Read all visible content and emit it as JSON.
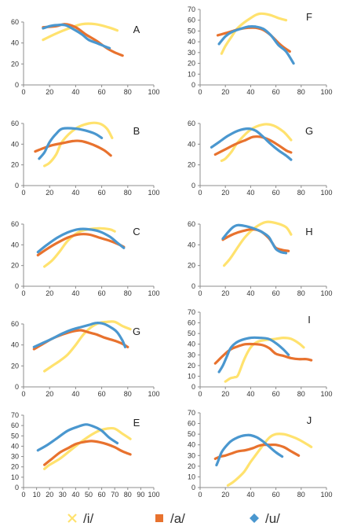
{
  "colors": {
    "i": "#FFE26E",
    "a": "#E8722E",
    "u": "#4A97CF",
    "axis": "#8C8C8C"
  },
  "legend": [
    {
      "key": "i",
      "label": "/i/",
      "marker": "x"
    },
    {
      "key": "a",
      "label": "/a/",
      "marker": "square"
    },
    {
      "key": "u",
      "label": "/u/",
      "marker": "diamond"
    }
  ],
  "chart_data": [
    {
      "type": "line",
      "label": "A",
      "xlim": [
        0,
        100
      ],
      "ylim": [
        0,
        60
      ],
      "xticks": [
        0,
        20,
        40,
        60,
        80,
        100
      ],
      "yticks": [
        0,
        20,
        40,
        60
      ],
      "series": [
        {
          "name": "/i/",
          "key": "i",
          "x": [
            15,
            25,
            35,
            45,
            55,
            65,
            72
          ],
          "y": [
            43,
            49,
            54,
            58,
            58,
            55,
            52
          ]
        },
        {
          "name": "/a/",
          "key": "a",
          "x": [
            15,
            25,
            32,
            40,
            48,
            56,
            64,
            70,
            76
          ],
          "y": [
            55,
            56,
            58,
            55,
            48,
            42,
            35,
            31,
            28
          ]
        },
        {
          "name": "/u/",
          "key": "u",
          "x": [
            15,
            20,
            25,
            32,
            40,
            45,
            50,
            56,
            62,
            66
          ],
          "y": [
            54,
            56,
            57,
            57,
            52,
            48,
            43,
            40,
            37,
            35
          ]
        }
      ]
    },
    {
      "type": "line",
      "label": "F",
      "xlim": [
        0,
        100
      ],
      "ylim": [
        0,
        70
      ],
      "xticks": [
        0,
        20,
        40,
        60,
        80,
        100
      ],
      "yticks": [
        0,
        10,
        20,
        30,
        40,
        50,
        60,
        70
      ],
      "series": [
        {
          "name": "/i/",
          "key": "i",
          "x": [
            17,
            20,
            25,
            30,
            40,
            47,
            55,
            62,
            68
          ],
          "y": [
            29,
            36,
            45,
            53,
            62,
            66,
            65,
            62,
            60
          ]
        },
        {
          "name": "/a/",
          "key": "a",
          "x": [
            14,
            20,
            26,
            32,
            38,
            44,
            50,
            56,
            62,
            66,
            71
          ],
          "y": [
            46,
            48,
            50,
            52,
            53,
            53,
            51,
            46,
            39,
            35,
            31
          ]
        },
        {
          "name": "/u/",
          "key": "u",
          "x": [
            15,
            20,
            25,
            32,
            38,
            44,
            50,
            56,
            62,
            68,
            74
          ],
          "y": [
            38,
            45,
            49,
            52,
            54,
            54,
            52,
            46,
            37,
            31,
            20
          ]
        }
      ]
    },
    {
      "type": "line",
      "label": "B",
      "xlim": [
        0,
        100
      ],
      "ylim": [
        0,
        60
      ],
      "xticks": [
        0,
        20,
        40,
        60,
        80,
        100
      ],
      "yticks": [
        0,
        20,
        40,
        60
      ],
      "series": [
        {
          "name": "/i/",
          "key": "i",
          "x": [
            16,
            20,
            25,
            30,
            40,
            50,
            58,
            64,
            68
          ],
          "y": [
            19,
            22,
            30,
            43,
            55,
            60,
            60,
            55,
            46
          ]
        },
        {
          "name": "/a/",
          "key": "a",
          "x": [
            9,
            15,
            22,
            30,
            38,
            44,
            50,
            56,
            62,
            67
          ],
          "y": [
            33,
            36,
            39,
            41,
            43,
            43,
            41,
            38,
            34,
            29
          ]
        },
        {
          "name": "/u/",
          "key": "u",
          "x": [
            12,
            16,
            20,
            25,
            30,
            40,
            48,
            55,
            60
          ],
          "y": [
            26,
            32,
            42,
            50,
            55,
            55,
            53,
            50,
            46
          ]
        }
      ]
    },
    {
      "type": "line",
      "label": "G",
      "xlim": [
        0,
        100
      ],
      "ylim": [
        0,
        60
      ],
      "xticks": [
        0,
        20,
        40,
        60,
        80,
        100
      ],
      "yticks": [
        0,
        20,
        40,
        60
      ],
      "series": [
        {
          "name": "/i/",
          "key": "i",
          "x": [
            17,
            20,
            25,
            30,
            40,
            50,
            58,
            66,
            72
          ],
          "y": [
            24,
            26,
            33,
            42,
            54,
            59,
            58,
            52,
            44
          ]
        },
        {
          "name": "/a/",
          "key": "a",
          "x": [
            12,
            20,
            28,
            36,
            42,
            48,
            55,
            62,
            68,
            72
          ],
          "y": [
            30,
            35,
            40,
            44,
            47,
            47,
            44,
            39,
            34,
            32
          ]
        },
        {
          "name": "/u/",
          "key": "u",
          "x": [
            9,
            15,
            22,
            30,
            38,
            44,
            50,
            56,
            62,
            68,
            72
          ],
          "y": [
            37,
            42,
            48,
            53,
            55,
            53,
            47,
            40,
            34,
            29,
            25
          ]
        }
      ]
    },
    {
      "type": "line",
      "label": "C",
      "xlim": [
        0,
        100
      ],
      "ylim": [
        0,
        60
      ],
      "xticks": [
        0,
        20,
        40,
        60,
        80,
        100
      ],
      "yticks": [
        0,
        20,
        40,
        60
      ],
      "series": [
        {
          "name": "/i/",
          "key": "i",
          "x": [
            16,
            22,
            28,
            34,
            42,
            50,
            58,
            66,
            70
          ],
          "y": [
            19,
            25,
            34,
            44,
            52,
            55,
            56,
            55,
            53
          ]
        },
        {
          "name": "/a/",
          "key": "a",
          "x": [
            11,
            18,
            26,
            34,
            42,
            50,
            58,
            66,
            72,
            77
          ],
          "y": [
            30,
            36,
            42,
            47,
            50,
            50,
            47,
            44,
            41,
            38
          ]
        },
        {
          "name": "/u/",
          "key": "u",
          "x": [
            11,
            18,
            26,
            34,
            42,
            50,
            58,
            66,
            72,
            77
          ],
          "y": [
            33,
            40,
            47,
            52,
            55,
            55,
            53,
            48,
            42,
            37
          ]
        }
      ]
    },
    {
      "type": "line",
      "label": "H",
      "xlim": [
        0,
        100
      ],
      "ylim": [
        0,
        60
      ],
      "xticks": [
        0,
        20,
        40,
        60,
        80,
        100
      ],
      "yticks": [
        0,
        20,
        40,
        60
      ],
      "series": [
        {
          "name": "/i/",
          "key": "i",
          "x": [
            19,
            24,
            30,
            36,
            44,
            52,
            60,
            68,
            72
          ],
          "y": [
            20,
            27,
            38,
            48,
            57,
            62,
            61,
            57,
            50
          ]
        },
        {
          "name": "/a/",
          "key": "a",
          "x": [
            18,
            24,
            30,
            36,
            42,
            48,
            54,
            57,
            60,
            65,
            70
          ],
          "y": [
            45,
            49,
            52,
            54,
            55,
            53,
            47,
            42,
            37,
            35,
            34
          ]
        },
        {
          "name": "/u/",
          "key": "u",
          "x": [
            18,
            22,
            26,
            30,
            36,
            42,
            48,
            54,
            57,
            60,
            64,
            68
          ],
          "y": [
            46,
            52,
            57,
            59,
            58,
            56,
            53,
            48,
            42,
            36,
            33,
            32
          ]
        }
      ]
    },
    {
      "type": "line",
      "label": "G",
      "xlim": [
        0,
        100
      ],
      "ylim": [
        0,
        60
      ],
      "xticks": [
        0,
        20,
        40,
        60,
        80,
        100
      ],
      "yticks": [
        0,
        20,
        40,
        60
      ],
      "series": [
        {
          "name": "/i/",
          "key": "i",
          "x": [
            16,
            22,
            28,
            34,
            40,
            46,
            52,
            58,
            64,
            70,
            76,
            82
          ],
          "y": [
            15,
            20,
            25,
            31,
            40,
            50,
            57,
            61,
            62,
            62,
            58,
            55
          ]
        },
        {
          "name": "/a/",
          "key": "a",
          "x": [
            8,
            15,
            22,
            30,
            38,
            44,
            50,
            56,
            62,
            70,
            76,
            80
          ],
          "y": [
            36,
            41,
            46,
            50,
            53,
            54,
            52,
            50,
            47,
            44,
            41,
            38
          ]
        },
        {
          "name": "/u/",
          "key": "u",
          "x": [
            8,
            15,
            22,
            30,
            38,
            44,
            50,
            56,
            62,
            68,
            72,
            76,
            78
          ],
          "y": [
            38,
            42,
            46,
            51,
            55,
            57,
            59,
            61,
            60,
            56,
            52,
            44,
            38
          ]
        }
      ]
    },
    {
      "type": "line",
      "label": "I",
      "xlim": [
        0,
        100
      ],
      "ylim": [
        0,
        70
      ],
      "xticks": [
        0,
        20,
        40,
        60,
        80,
        100
      ],
      "yticks": [
        0,
        10,
        20,
        30,
        40,
        50,
        60,
        70
      ],
      "series": [
        {
          "name": "/i/",
          "key": "i",
          "x": [
            20,
            24,
            27,
            30,
            35,
            40,
            45,
            52,
            60,
            66,
            72,
            78,
            82
          ],
          "y": [
            5,
            8,
            9,
            11,
            26,
            37,
            42,
            44,
            45,
            46,
            45,
            41,
            37
          ]
        },
        {
          "name": "/a/",
          "key": "a",
          "x": [
            12,
            18,
            24,
            30,
            36,
            44,
            50,
            55,
            60,
            66,
            72,
            78,
            84,
            88
          ],
          "y": [
            22,
            29,
            35,
            38,
            40,
            40,
            39,
            36,
            31,
            29,
            27,
            26,
            26,
            25
          ]
        },
        {
          "name": "/u/",
          "key": "u",
          "x": [
            15,
            18,
            21,
            24,
            28,
            33,
            40,
            47,
            54,
            60,
            66,
            70
          ],
          "y": [
            14,
            20,
            28,
            36,
            41,
            44,
            46,
            46,
            45,
            41,
            35,
            30
          ]
        }
      ]
    },
    {
      "type": "line",
      "label": "E",
      "xlim": [
        0,
        100
      ],
      "ylim": [
        0,
        70
      ],
      "xticks": [
        0,
        10,
        20,
        30,
        40,
        50,
        60,
        70,
        80,
        90,
        100
      ],
      "yticks": [
        0,
        10,
        20,
        30,
        40,
        50,
        60,
        70
      ],
      "series": [
        {
          "name": "/i/",
          "key": "i",
          "x": [
            16,
            20,
            28,
            36,
            44,
            52,
            58,
            64,
            70,
            76,
            82
          ],
          "y": [
            18,
            22,
            28,
            36,
            44,
            51,
            55,
            57,
            57,
            52,
            47
          ]
        },
        {
          "name": "/a/",
          "key": "a",
          "x": [
            16,
            22,
            28,
            34,
            40,
            46,
            52,
            58,
            64,
            70,
            76,
            82
          ],
          "y": [
            22,
            28,
            34,
            38,
            42,
            44,
            45,
            44,
            42,
            39,
            35,
            32
          ]
        },
        {
          "name": "/u/",
          "key": "u",
          "x": [
            11,
            18,
            26,
            34,
            42,
            48,
            54,
            60,
            66,
            72
          ],
          "y": [
            36,
            41,
            48,
            55,
            59,
            61,
            59,
            55,
            48,
            43
          ]
        }
      ]
    },
    {
      "type": "line",
      "label": "J",
      "xlim": [
        0,
        100
      ],
      "ylim": [
        0,
        70
      ],
      "xticks": [
        0,
        20,
        40,
        60,
        80,
        100
      ],
      "yticks": [
        0,
        10,
        20,
        30,
        40,
        50,
        60,
        70
      ],
      "series": [
        {
          "name": "/i/",
          "key": "i",
          "x": [
            22,
            26,
            30,
            35,
            40,
            45,
            50,
            55,
            60,
            66,
            72,
            78,
            84,
            88
          ],
          "y": [
            2,
            5,
            9,
            15,
            24,
            32,
            40,
            47,
            50,
            50,
            48,
            45,
            41,
            38
          ]
        },
        {
          "name": "/a/",
          "key": "a",
          "x": [
            12,
            16,
            20,
            25,
            30,
            36,
            42,
            46,
            50,
            55,
            60,
            66,
            72,
            78
          ],
          "y": [
            27,
            29,
            30,
            32,
            34,
            35,
            37,
            39,
            40,
            40,
            40,
            38,
            34,
            30
          ]
        },
        {
          "name": "/u/",
          "key": "u",
          "x": [
            13,
            15,
            17,
            20,
            24,
            28,
            32,
            36,
            40,
            45,
            50,
            55,
            60,
            65
          ],
          "y": [
            21,
            27,
            33,
            38,
            43,
            46,
            48,
            49,
            49,
            47,
            43,
            38,
            33,
            29
          ]
        }
      ]
    }
  ]
}
